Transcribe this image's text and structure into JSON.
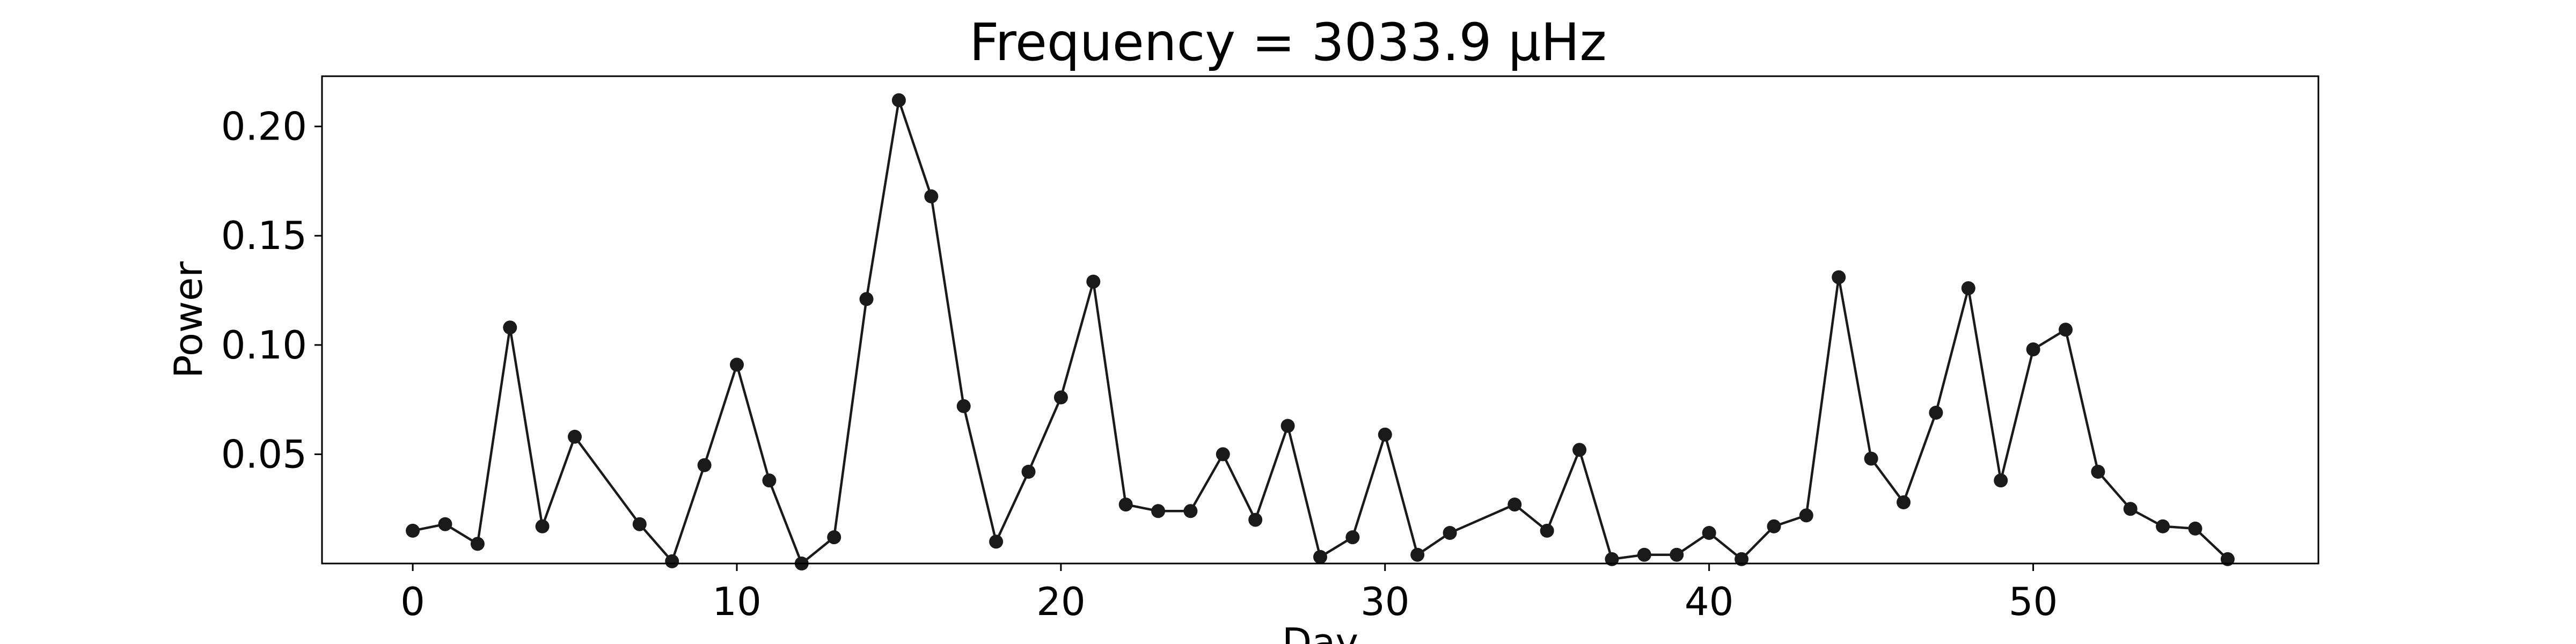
{
  "chart_data": {
    "type": "line",
    "title": "Frequency = 3033.9 μHz",
    "xlabel": "Day",
    "ylabel": "Power",
    "xlim": [
      -2.8,
      58.8
    ],
    "ylim": [
      0,
      0.223
    ],
    "x_ticks": [
      0,
      10,
      20,
      30,
      40,
      50
    ],
    "x_tick_labels": [
      "0",
      "10",
      "20",
      "30",
      "40",
      "50"
    ],
    "y_ticks": [
      0.05,
      0.1,
      0.15,
      0.2
    ],
    "y_tick_labels": [
      "0.05",
      "0.10",
      "0.15",
      "0.20"
    ],
    "grid": false,
    "marker": "circle",
    "line_color": "#1a1a1a",
    "series": [
      {
        "x": [
          0,
          1,
          2,
          3,
          4,
          5,
          7,
          8,
          9,
          10,
          11,
          12,
          13,
          14,
          15,
          16,
          17,
          18,
          19,
          20,
          21,
          22,
          23,
          24,
          25,
          26,
          27,
          28,
          29,
          30,
          31,
          32,
          34,
          35,
          36,
          37,
          38,
          39,
          40,
          41,
          42,
          43,
          44,
          45,
          46,
          47,
          48,
          49,
          50,
          51,
          52,
          53,
          54,
          55,
          56
        ],
        "y": [
          0.015,
          0.018,
          0.009,
          0.108,
          0.017,
          0.058,
          0.018,
          0.001,
          0.045,
          0.091,
          0.038,
          0.0,
          0.012,
          0.121,
          0.212,
          0.168,
          0.072,
          0.01,
          0.042,
          0.076,
          0.129,
          0.027,
          0.024,
          0.024,
          0.05,
          0.02,
          0.063,
          0.003,
          0.012,
          0.059,
          0.004,
          0.014,
          0.027,
          0.015,
          0.052,
          0.002,
          0.004,
          0.004,
          0.014,
          0.002,
          0.017,
          0.022,
          0.131,
          0.048,
          0.028,
          0.069,
          0.126,
          0.038,
          0.098,
          0.107,
          0.042,
          0.025,
          0.017,
          0.016,
          0.002
        ]
      }
    ]
  }
}
